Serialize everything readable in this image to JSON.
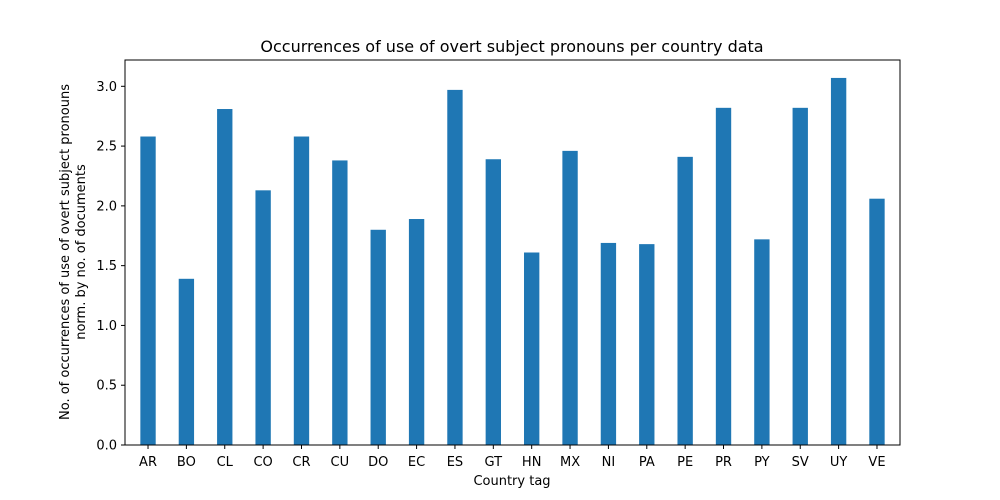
{
  "chart_data": {
    "type": "bar",
    "title": "Occurrences of use of overt subject pronouns per country data",
    "xlabel": "Country tag",
    "ylabel_lines": [
      "No. of occurrences of use of overt subject pronouns",
      "norm. by no. of documents"
    ],
    "categories": [
      "AR",
      "BO",
      "CL",
      "CO",
      "CR",
      "CU",
      "DO",
      "EC",
      "ES",
      "GT",
      "HN",
      "MX",
      "NI",
      "PA",
      "PE",
      "PR",
      "PY",
      "SV",
      "UY",
      "VE"
    ],
    "values": [
      2.58,
      1.39,
      2.81,
      2.13,
      2.58,
      2.38,
      1.8,
      1.89,
      2.97,
      2.39,
      1.61,
      2.46,
      1.69,
      1.68,
      2.41,
      2.82,
      1.72,
      2.82,
      3.07,
      2.06
    ],
    "ylim": [
      0,
      3.22
    ],
    "yticks": [
      0.0,
      0.5,
      1.0,
      1.5,
      2.0,
      2.5,
      3.0
    ],
    "ytick_labels": [
      "0.0",
      "0.5",
      "1.0",
      "1.5",
      "2.0",
      "2.5",
      "3.0"
    ],
    "bar_color": "#1f77b4",
    "grid": false,
    "legend": "none"
  }
}
